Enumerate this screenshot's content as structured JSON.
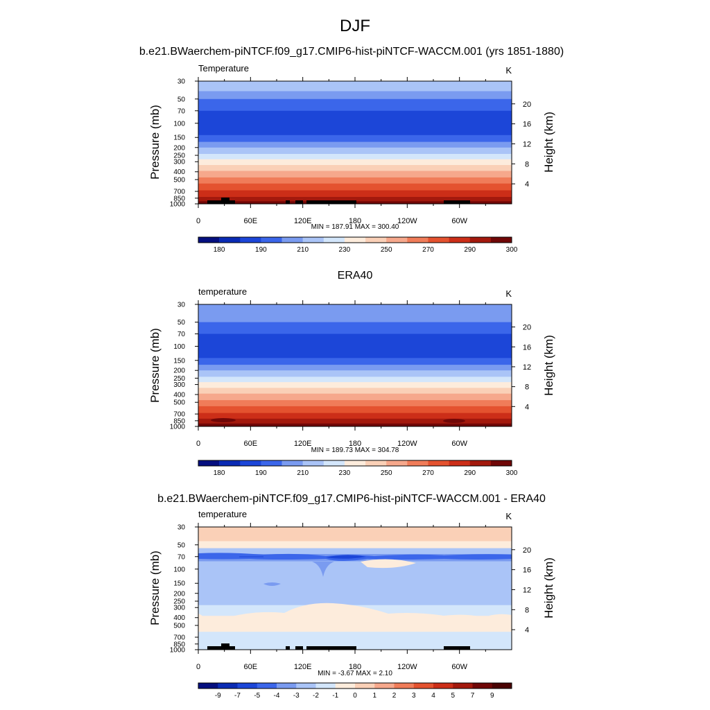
{
  "figure": {
    "title": "DJF"
  },
  "chart_data": [
    {
      "type": "heatmap",
      "title": "b.e21.BWaerchem-piNTCF.f09_g17.CMIP6-hist-piNTCF-WACCM.001 (yrs 1851-1880)",
      "left_label": "Temperature",
      "units": "K",
      "ylabel": "Pressure (mb)",
      "ylabel_right": "Height (km)",
      "x_ticks": [
        "0",
        "60E",
        "120E",
        "180",
        "120W",
        "60W"
      ],
      "y_ticks": [
        "30",
        "50",
        "70",
        "100",
        "150",
        "200",
        "250",
        "300",
        "400",
        "500",
        "700",
        "850",
        "1000"
      ],
      "y_ticks_right": [
        "20",
        "16",
        "12",
        "8",
        "4"
      ],
      "stats": "MIN = 187.91  MAX = 300.40",
      "colorbar": {
        "labels": [
          "180",
          "190",
          "210",
          "230",
          "250",
          "270",
          "290",
          "300"
        ],
        "colors": [
          "#050f7f",
          "#0a2bb4",
          "#1c46d8",
          "#3b66ea",
          "#7a9bf0",
          "#aac4f7",
          "#d3e6fb",
          "#fdecdc",
          "#fad0b7",
          "#f6a88c",
          "#f07c59",
          "#e4522f",
          "#cc2e18",
          "#a3190d",
          "#700707"
        ]
      },
      "levels": [
        {
          "p": 30,
          "c": 5
        },
        {
          "p": 40,
          "c": 4
        },
        {
          "p": 50,
          "c": 3
        },
        {
          "p": 70,
          "c": 2
        },
        {
          "p": 100,
          "c": 2
        },
        {
          "p": 140,
          "c": 3
        },
        {
          "p": 170,
          "c": 4
        },
        {
          "p": 200,
          "c": 5
        },
        {
          "p": 240,
          "c": 6
        },
        {
          "p": 280,
          "c": 7
        },
        {
          "p": 330,
          "c": 8
        },
        {
          "p": 390,
          "c": 9
        },
        {
          "p": 470,
          "c": 10
        },
        {
          "p": 560,
          "c": 11
        },
        {
          "p": 680,
          "c": 12
        },
        {
          "p": 820,
          "c": 13
        },
        {
          "p": 930,
          "c": 14
        },
        {
          "p": 1000,
          "c": 14
        }
      ]
    },
    {
      "type": "heatmap",
      "title": "ERA40",
      "left_label": "temperature",
      "units": "K",
      "ylabel": "Pressure (mb)",
      "ylabel_right": "Height (km)",
      "x_ticks": [
        "0",
        "60E",
        "120E",
        "180",
        "120W",
        "60W"
      ],
      "y_ticks": [
        "30",
        "50",
        "70",
        "100",
        "150",
        "200",
        "250",
        "300",
        "400",
        "500",
        "700",
        "850",
        "1000"
      ],
      "y_ticks_right": [
        "20",
        "16",
        "12",
        "8",
        "4"
      ],
      "stats": "MIN = 189.73  MAX = 304.78",
      "colorbar": {
        "labels": [
          "180",
          "190",
          "210",
          "230",
          "250",
          "270",
          "290",
          "300"
        ],
        "colors": [
          "#050f7f",
          "#0a2bb4",
          "#1c46d8",
          "#3b66ea",
          "#7a9bf0",
          "#aac4f7",
          "#d3e6fb",
          "#fdecdc",
          "#fad0b7",
          "#f6a88c",
          "#f07c59",
          "#e4522f",
          "#cc2e18",
          "#a3190d",
          "#700707"
        ]
      },
      "levels": [
        {
          "p": 30,
          "c": 4
        },
        {
          "p": 50,
          "c": 3
        },
        {
          "p": 70,
          "c": 2
        },
        {
          "p": 100,
          "c": 2
        },
        {
          "p": 140,
          "c": 3
        },
        {
          "p": 170,
          "c": 4
        },
        {
          "p": 200,
          "c": 5
        },
        {
          "p": 240,
          "c": 6
        },
        {
          "p": 280,
          "c": 7
        },
        {
          "p": 330,
          "c": 8
        },
        {
          "p": 390,
          "c": 9
        },
        {
          "p": 470,
          "c": 10
        },
        {
          "p": 560,
          "c": 11
        },
        {
          "p": 680,
          "c": 12
        },
        {
          "p": 800,
          "c": 13
        },
        {
          "p": 920,
          "c": 14
        },
        {
          "p": 1000,
          "c": 14
        }
      ]
    },
    {
      "type": "heatmap",
      "title": "b.e21.BWaerchem-piNTCF.f09_g17.CMIP6-hist-piNTCF-WACCM.001 - ERA40",
      "left_label": "temperature",
      "units": "K",
      "ylabel": "Pressure (mb)",
      "ylabel_right": "Height (km)",
      "x_ticks": [
        "0",
        "60E",
        "120E",
        "180",
        "120W",
        "60W"
      ],
      "y_ticks": [
        "30",
        "50",
        "70",
        "100",
        "150",
        "200",
        "250",
        "300",
        "400",
        "500",
        "700",
        "850",
        "1000"
      ],
      "y_ticks_right": [
        "20",
        "16",
        "12",
        "8",
        "4"
      ],
      "stats": "MIN =  -3.67  MAX =   2.10",
      "colorbar": {
        "labels": [
          "-9",
          "-7",
          "-5",
          "-4",
          "-3",
          "-2",
          "-1",
          "0",
          "1",
          "2",
          "3",
          "4",
          "5",
          "7",
          "9"
        ],
        "colors": [
          "#050f7f",
          "#0a2bb4",
          "#1c46d8",
          "#3b66ea",
          "#7a9bf0",
          "#aac4f7",
          "#d3e6fb",
          "#fdecdc",
          "#fad0b7",
          "#f6a88c",
          "#f07c59",
          "#e4522f",
          "#cc2e18",
          "#a3190d",
          "#700707",
          "#4a0303"
        ]
      },
      "levels": [
        {
          "p": 30,
          "c": 8
        },
        {
          "p": 45,
          "c": 7
        },
        {
          "p": 55,
          "c": 5
        },
        {
          "p": 65,
          "c": 4
        },
        {
          "p": 80,
          "c": 5
        },
        {
          "p": 120,
          "c": 5
        },
        {
          "p": 200,
          "c": 5
        },
        {
          "p": 280,
          "c": 6
        },
        {
          "p": 380,
          "c": 7
        },
        {
          "p": 600,
          "c": 6
        },
        {
          "p": 1000,
          "c": 6
        }
      ]
    }
  ]
}
